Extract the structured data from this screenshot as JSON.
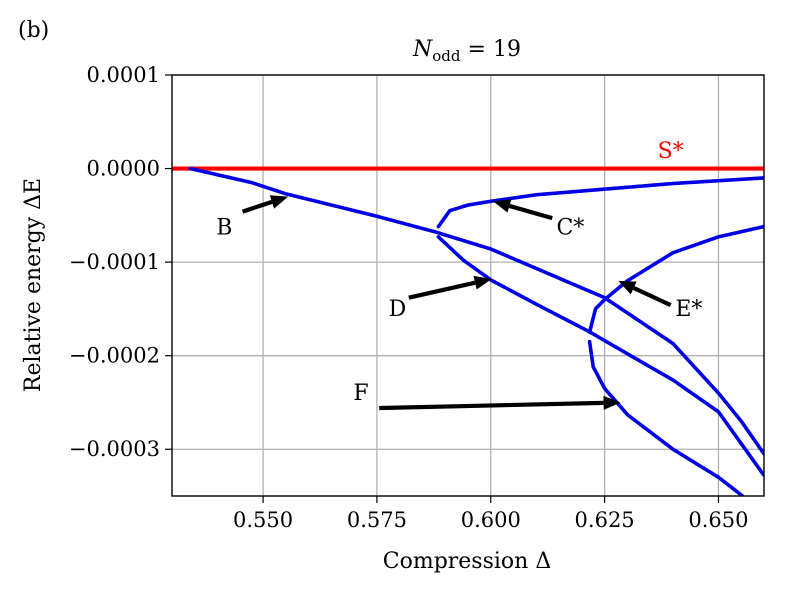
{
  "panel_label": "(b)",
  "colors": {
    "stable": "#ff0000",
    "unstable": "#0000e6",
    "grid": "#b0b0b0",
    "axis": "#000000"
  },
  "chart_data": {
    "type": "scatter",
    "title": "N_odd = 19",
    "title_main": "N",
    "title_sub": "odd",
    "title_rest": " = 19",
    "xlabel": "Compression Δ",
    "ylabel": "Relative energy ΔE",
    "xlim": [
      0.53,
      0.66
    ],
    "ylim": [
      -0.00035,
      0.0001
    ],
    "grid": true,
    "xticks": [
      0.55,
      0.575,
      0.6,
      0.625,
      0.65
    ],
    "xtick_labels": [
      "0.550",
      "0.575",
      "0.600",
      "0.625",
      "0.650"
    ],
    "yticks": [
      0.0001,
      0.0,
      -0.0001,
      -0.0002,
      -0.0003
    ],
    "ytick_labels": [
      "0.0001",
      "0.0000",
      "−0.0001",
      "−0.0002",
      "−0.0003"
    ],
    "series": [
      {
        "name": "S*",
        "color": "#ff0000",
        "points": [
          [
            0.53,
            0.0
          ],
          [
            0.66,
            0.0
          ]
        ]
      },
      {
        "name": "",
        "color": "#0000e6",
        "points": [
          [
            0.534,
            0.0
          ],
          [
            0.5475,
            -1.5e-05
          ],
          [
            0.555,
            -2.7e-05
          ],
          [
            0.575,
            -5.1e-05
          ],
          [
            0.588,
            -6.8e-05
          ],
          [
            0.6,
            -8.6e-05
          ],
          [
            0.625,
            -0.000138
          ],
          [
            0.64,
            -0.000187
          ],
          [
            0.65,
            -0.00024
          ],
          [
            0.655,
            -0.00027
          ],
          [
            0.66,
            -0.000305
          ]
        ]
      },
      {
        "name": "",
        "color": "#0000e6",
        "points": [
          [
            0.5885,
            -7.3e-05
          ],
          [
            0.594,
            -9.8e-05
          ],
          [
            0.6,
            -0.000119
          ],
          [
            0.61,
            -0.000145
          ],
          [
            0.6215,
            -0.000174
          ],
          [
            0.63,
            -0.000198
          ],
          [
            0.64,
            -0.000226
          ],
          [
            0.65,
            -0.00026
          ],
          [
            0.66,
            -0.000328
          ]
        ]
      },
      {
        "name": "",
        "color": "#0000e6",
        "points": [
          [
            0.5885,
            -6.2e-05
          ],
          [
            0.591,
            -4.5e-05
          ],
          [
            0.595,
            -3.9e-05
          ],
          [
            0.6,
            -3.5e-05
          ],
          [
            0.61,
            -2.8e-05
          ],
          [
            0.625,
            -2.2e-05
          ],
          [
            0.64,
            -1.6e-05
          ],
          [
            0.65,
            -1.3e-05
          ],
          [
            0.66,
            -1e-05
          ]
        ]
      },
      {
        "name": "",
        "color": "#0000e6",
        "points": [
          [
            0.6217,
            -0.000175
          ],
          [
            0.623,
            -0.00015
          ],
          [
            0.625,
            -0.00014
          ],
          [
            0.63,
            -0.00012
          ],
          [
            0.64,
            -9e-05
          ],
          [
            0.65,
            -7.3e-05
          ],
          [
            0.66,
            -6.2e-05
          ]
        ]
      },
      {
        "name": "",
        "color": "#0000e6",
        "points": [
          [
            0.6217,
            -0.000185
          ],
          [
            0.6225,
            -0.000212
          ],
          [
            0.625,
            -0.000235
          ],
          [
            0.63,
            -0.000263
          ],
          [
            0.64,
            -0.0003
          ],
          [
            0.65,
            -0.00033
          ],
          [
            0.6553,
            -0.00035
          ]
        ]
      }
    ],
    "annotations": [
      {
        "text": "S*",
        "color": "#ff0000",
        "at": [
          0.6395,
          2e-05
        ],
        "arrow": false
      },
      {
        "text": "B",
        "color": "#000000",
        "at": [
          0.5415,
          -6.2e-05
        ],
        "arrow_from": [
          0.5455,
          -4.6e-05
        ],
        "arrow_to": [
          0.5555,
          -3e-05
        ]
      },
      {
        "text": "C*",
        "color": "#000000",
        "at": [
          0.6175,
          -6.2e-05
        ],
        "arrow_from": [
          0.6135,
          -5.3e-05
        ],
        "arrow_to": [
          0.6005,
          -3.5e-05
        ]
      },
      {
        "text": "D",
        "color": "#000000",
        "at": [
          0.5795,
          -0.000149
        ],
        "arrow_from": [
          0.582,
          -0.000138
        ],
        "arrow_to": [
          0.6002,
          -0.000118
        ]
      },
      {
        "text": "E*",
        "color": "#000000",
        "at": [
          0.6435,
          -0.000149
        ],
        "arrow_from": [
          0.6395,
          -0.000146
        ],
        "arrow_to": [
          0.628,
          -0.00012
        ]
      },
      {
        "text": "F",
        "color": "#000000",
        "at": [
          0.5715,
          -0.000239
        ],
        "arrow_from": [
          0.5755,
          -0.000256
        ],
        "arrow_to": [
          0.6285,
          -0.00025
        ]
      }
    ]
  }
}
